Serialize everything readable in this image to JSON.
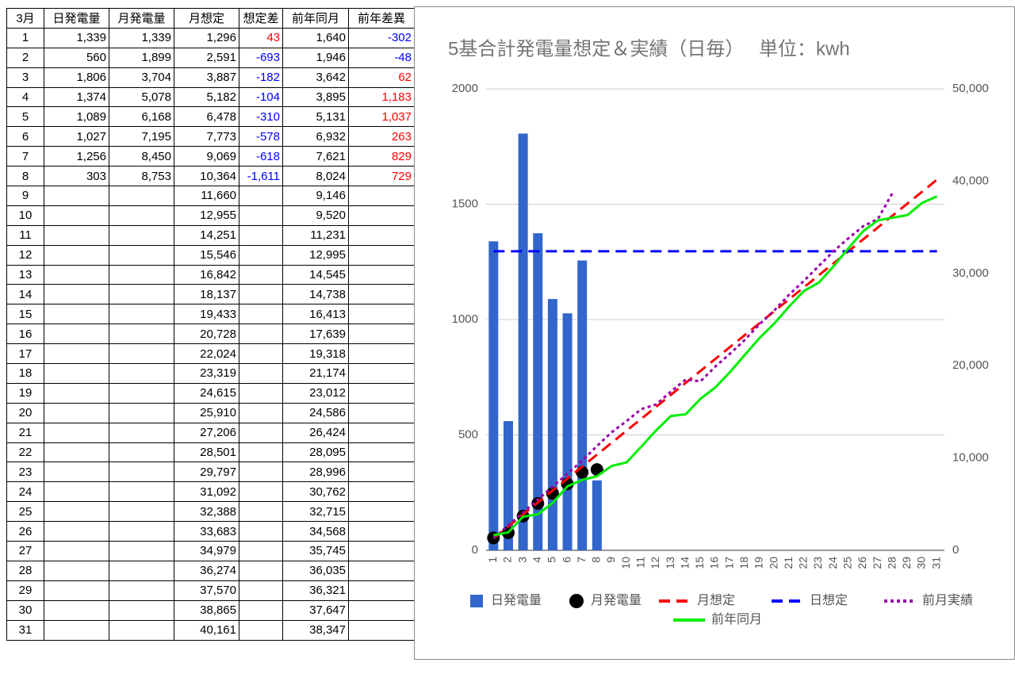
{
  "table": {
    "header": [
      "3月",
      "日発電量",
      "月発電量",
      "月想定",
      "想定差",
      "前年同月",
      "前年差異"
    ],
    "rows": [
      [
        "1",
        "1,339",
        "1,339",
        "1,296",
        "43",
        "1,640",
        "-302"
      ],
      [
        "2",
        "560",
        "1,899",
        "2,591",
        "-693",
        "1,946",
        "-48"
      ],
      [
        "3",
        "1,806",
        "3,704",
        "3,887",
        "-182",
        "3,642",
        "62"
      ],
      [
        "4",
        "1,374",
        "5,078",
        "5,182",
        "-104",
        "3,895",
        "1,183"
      ],
      [
        "5",
        "1,089",
        "6,168",
        "6,478",
        "-310",
        "5,131",
        "1,037"
      ],
      [
        "6",
        "1,027",
        "7,195",
        "7,773",
        "-578",
        "6,932",
        "263"
      ],
      [
        "7",
        "1,256",
        "8,450",
        "9,069",
        "-618",
        "7,621",
        "829"
      ],
      [
        "8",
        "303",
        "8,753",
        "10,364",
        "-1,611",
        "8,024",
        "729"
      ],
      [
        "9",
        null,
        null,
        "11,660",
        null,
        "9,146",
        null
      ],
      [
        "10",
        null,
        null,
        "12,955",
        null,
        "9,520",
        null
      ],
      [
        "11",
        null,
        null,
        "14,251",
        null,
        "11,231",
        null
      ],
      [
        "12",
        null,
        null,
        "15,546",
        null,
        "12,995",
        null
      ],
      [
        "13",
        null,
        null,
        "16,842",
        null,
        "14,545",
        null
      ],
      [
        "14",
        null,
        null,
        "18,137",
        null,
        "14,738",
        null
      ],
      [
        "15",
        null,
        null,
        "19,433",
        null,
        "16,413",
        null
      ],
      [
        "16",
        null,
        null,
        "20,728",
        null,
        "17,639",
        null
      ],
      [
        "17",
        null,
        null,
        "22,024",
        null,
        "19,318",
        null
      ],
      [
        "18",
        null,
        null,
        "23,319",
        null,
        "21,174",
        null
      ],
      [
        "19",
        null,
        null,
        "24,615",
        null,
        "23,012",
        null
      ],
      [
        "20",
        null,
        null,
        "25,910",
        null,
        "24,586",
        null
      ],
      [
        "21",
        null,
        null,
        "27,206",
        null,
        "26,424",
        null
      ],
      [
        "22",
        null,
        null,
        "28,501",
        null,
        "28,095",
        null
      ],
      [
        "23",
        null,
        null,
        "29,797",
        null,
        "28,996",
        null
      ],
      [
        "24",
        null,
        null,
        "31,092",
        null,
        "30,762",
        null
      ],
      [
        "25",
        null,
        null,
        "32,388",
        null,
        "32,715",
        null
      ],
      [
        "26",
        null,
        null,
        "33,683",
        null,
        "34,568",
        null
      ],
      [
        "27",
        null,
        null,
        "34,979",
        null,
        "35,745",
        null
      ],
      [
        "28",
        null,
        null,
        "36,274",
        null,
        "36,035",
        null
      ],
      [
        "29",
        null,
        null,
        "37,570",
        null,
        "36,321",
        null
      ],
      [
        "30",
        null,
        null,
        "38,865",
        null,
        "37,647",
        null
      ],
      [
        "31",
        null,
        null,
        "40,161",
        null,
        "38,347",
        null
      ]
    ],
    "negative_color": "#0000ff",
    "positive_color": "#ff0000"
  },
  "chart_data": {
    "type": "combo",
    "title": "5基合計発電量想定＆実績（日毎）　 単位：kwh",
    "categories": [
      "1",
      "2",
      "3",
      "4",
      "5",
      "6",
      "7",
      "8",
      "9",
      "10",
      "11",
      "12",
      "13",
      "14",
      "15",
      "16",
      "17",
      "18",
      "19",
      "20",
      "21",
      "22",
      "23",
      "24",
      "25",
      "26",
      "27",
      "28",
      "29",
      "30",
      "31"
    ],
    "ylim": [
      0,
      2000
    ],
    "yticks": [
      0,
      500,
      1000,
      1500,
      2000
    ],
    "y2lim": [
      0,
      50000
    ],
    "y2ticks": [
      0,
      {
        "value": 10000,
        "label": "10,000"
      },
      {
        "value": 20000,
        "label": "20,000"
      },
      {
        "value": 30000,
        "label": "30,000"
      },
      {
        "value": 40000,
        "label": "40,000"
      },
      {
        "value": 50000,
        "label": "50,000"
      }
    ],
    "grid": true,
    "series": [
      {
        "name": "日発電量",
        "type": "bar",
        "color": "#3366cc",
        "values": [
          1339,
          560,
          1806,
          1374,
          1089,
          1027,
          1256,
          303,
          null,
          null,
          null,
          null,
          null,
          null,
          null,
          null,
          null,
          null,
          null,
          null,
          null,
          null,
          null,
          null,
          null,
          null,
          null,
          null,
          null,
          null,
          null
        ]
      },
      {
        "name": "月発電量",
        "type": "scatter",
        "axis": "y2",
        "color": "#000000",
        "values": [
          1339,
          1899,
          3704,
          5078,
          6168,
          7195,
          8450,
          8753,
          null,
          null,
          null,
          null,
          null,
          null,
          null,
          null,
          null,
          null,
          null,
          null,
          null,
          null,
          null,
          null,
          null,
          null,
          null,
          null,
          null,
          null,
          null
        ]
      },
      {
        "name": "月想定",
        "type": "line",
        "axis": "y2",
        "color": "#ff0000",
        "dash": "dashed",
        "values": [
          1296,
          2591,
          3887,
          5182,
          6478,
          7773,
          9069,
          10364,
          11660,
          12955,
          14251,
          15546,
          16842,
          18137,
          19433,
          20728,
          22024,
          23319,
          24615,
          25910,
          27206,
          28501,
          29797,
          31092,
          32388,
          33683,
          34979,
          36274,
          37570,
          38865,
          40161
        ]
      },
      {
        "name": "日想定",
        "type": "line",
        "color": "#0000ff",
        "dash": "dashed",
        "values": [
          1296,
          1296,
          1296,
          1296,
          1296,
          1296,
          1296,
          1296,
          1296,
          1296,
          1296,
          1296,
          1296,
          1296,
          1296,
          1296,
          1296,
          1296,
          1296,
          1296,
          1296,
          1296,
          1296,
          1296,
          1296,
          1296,
          1296,
          1296,
          1296,
          1296,
          1296
        ]
      },
      {
        "name": "前月実績",
        "type": "line",
        "axis": "y2",
        "color": "#9900aa",
        "dash": "dotted",
        "values": [
          1300,
          2700,
          4100,
          5500,
          6900,
          8300,
          9700,
          11300,
          12800,
          14000,
          15300,
          15800,
          17200,
          18500,
          18300,
          19900,
          21300,
          22800,
          24500,
          26000,
          27700,
          29200,
          30800,
          32400,
          33800,
          35100,
          35900,
          38750,
          null,
          null,
          null
        ]
      },
      {
        "name": "前年同月",
        "type": "line",
        "axis": "y2",
        "color": "#00ee00",
        "values": [
          1640,
          1946,
          3642,
          3895,
          5131,
          6932,
          7621,
          8024,
          9146,
          9520,
          11231,
          12995,
          14545,
          14738,
          16413,
          17639,
          19318,
          21174,
          23012,
          24586,
          26424,
          28095,
          28996,
          30762,
          32715,
          34568,
          35745,
          36035,
          36321,
          37647,
          38347
        ]
      }
    ]
  }
}
